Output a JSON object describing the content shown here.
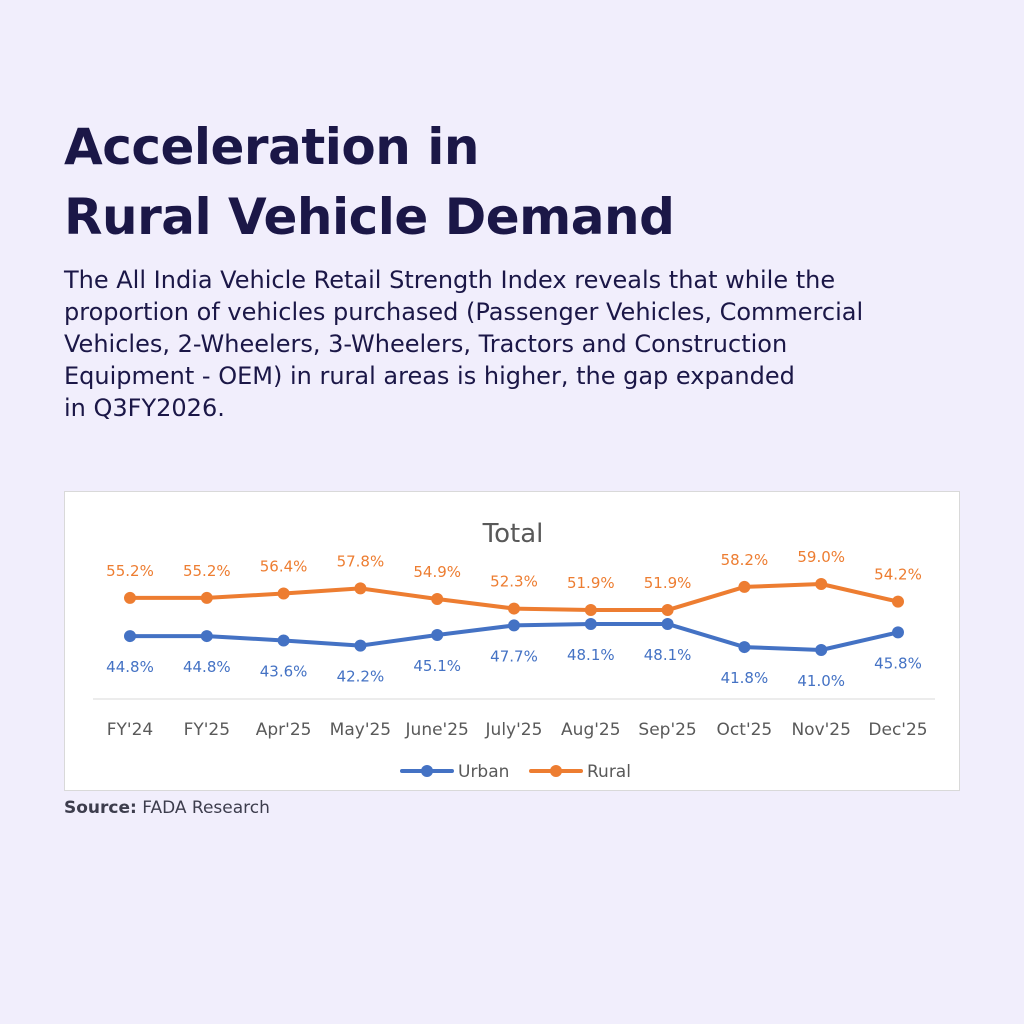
{
  "heading": {
    "line1": "Acceleration in",
    "line2": "Rural Vehicle Demand"
  },
  "description": {
    "line1": "The All India Vehicle Retail Strength Index reveals that while the",
    "line2": "proportion of vehicles purchased (Passenger Vehicles, Commercial",
    "line3": "Vehicles, 2-Wheelers, 3-Wheelers, Tractors and Construction",
    "line4": "Equipment - OEM) in rural areas is higher, the gap expanded",
    "line5": "in Q3FY2026."
  },
  "source": {
    "label": "Source:",
    "text": "FADA Research"
  },
  "colors": {
    "urban": "#4472c4",
    "rural": "#ed7d31"
  },
  "chart_data": {
    "type": "line",
    "title": "Total",
    "categories": [
      "FY'24",
      "FY'25",
      "Apr'25",
      "May'25",
      "June'25",
      "July'25",
      "Aug'25",
      "Sep'25",
      "Oct'25",
      "Nov'25",
      "Dec'25"
    ],
    "series": [
      {
        "name": "Urban",
        "values": [
          44.8,
          44.8,
          43.6,
          42.2,
          45.1,
          47.7,
          48.1,
          48.1,
          41.8,
          41.0,
          45.8
        ],
        "labels": [
          "44.8%",
          "44.8%",
          "43.6%",
          "42.2%",
          "45.1%",
          "47.7%",
          "48.1%",
          "48.1%",
          "41.8%",
          "41.0%",
          "45.8%"
        ]
      },
      {
        "name": "Rural",
        "values": [
          55.2,
          55.2,
          56.4,
          57.8,
          54.9,
          52.3,
          51.9,
          51.9,
          58.2,
          59.0,
          54.2
        ],
        "labels": [
          "55.2%",
          "55.2%",
          "56.4%",
          "57.8%",
          "54.9%",
          "52.3%",
          "51.9%",
          "51.9%",
          "58.2%",
          "59.0%",
          "54.2%"
        ]
      }
    ],
    "legend": "bottom",
    "grid": false,
    "y_axis_visible": false
  }
}
